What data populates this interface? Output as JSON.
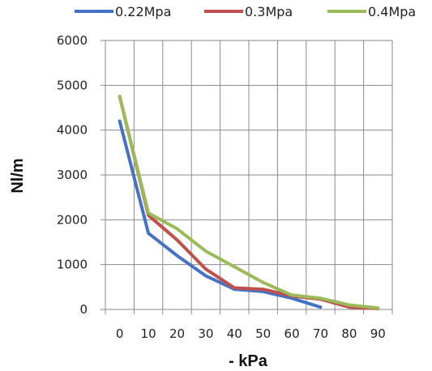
{
  "chart_data": {
    "type": "line",
    "xlabel": "- kPa",
    "ylabel": "Nl/m",
    "title": "",
    "x_ticks": [
      "0",
      "10",
      "20",
      "30",
      "40",
      "50",
      "60",
      "70",
      "80",
      "90"
    ],
    "y_ticks": [
      "0",
      "1000",
      "2000",
      "3000",
      "4000",
      "5000",
      "6000"
    ],
    "xlim": [
      -5,
      95
    ],
    "ylim": [
      0,
      6000
    ],
    "grid": true,
    "legend_position": "top",
    "series": [
      {
        "name": "0.22Mpa",
        "color": "#4472c4",
        "points": [
          [
            0,
            4200
          ],
          [
            10,
            1700
          ],
          [
            20,
            1200
          ],
          [
            30,
            750
          ],
          [
            40,
            450
          ],
          [
            50,
            400
          ],
          [
            60,
            250
          ],
          [
            70,
            50
          ]
        ]
      },
      {
        "name": "0.3Mpa",
        "color": "#c0504d",
        "points": [
          [
            0,
            4750
          ],
          [
            10,
            2100
          ],
          [
            20,
            1550
          ],
          [
            30,
            900
          ],
          [
            40,
            480
          ],
          [
            50,
            450
          ],
          [
            60,
            300
          ],
          [
            70,
            230
          ],
          [
            80,
            50
          ],
          [
            90,
            20
          ]
        ]
      },
      {
        "name": "0.4Mpa",
        "color": "#9bbb59",
        "points": [
          [
            0,
            4750
          ],
          [
            10,
            2150
          ],
          [
            20,
            1800
          ],
          [
            30,
            1300
          ],
          [
            40,
            950
          ],
          [
            50,
            600
          ],
          [
            60,
            320
          ],
          [
            70,
            250
          ],
          [
            80,
            100
          ],
          [
            90,
            30
          ]
        ]
      }
    ]
  }
}
